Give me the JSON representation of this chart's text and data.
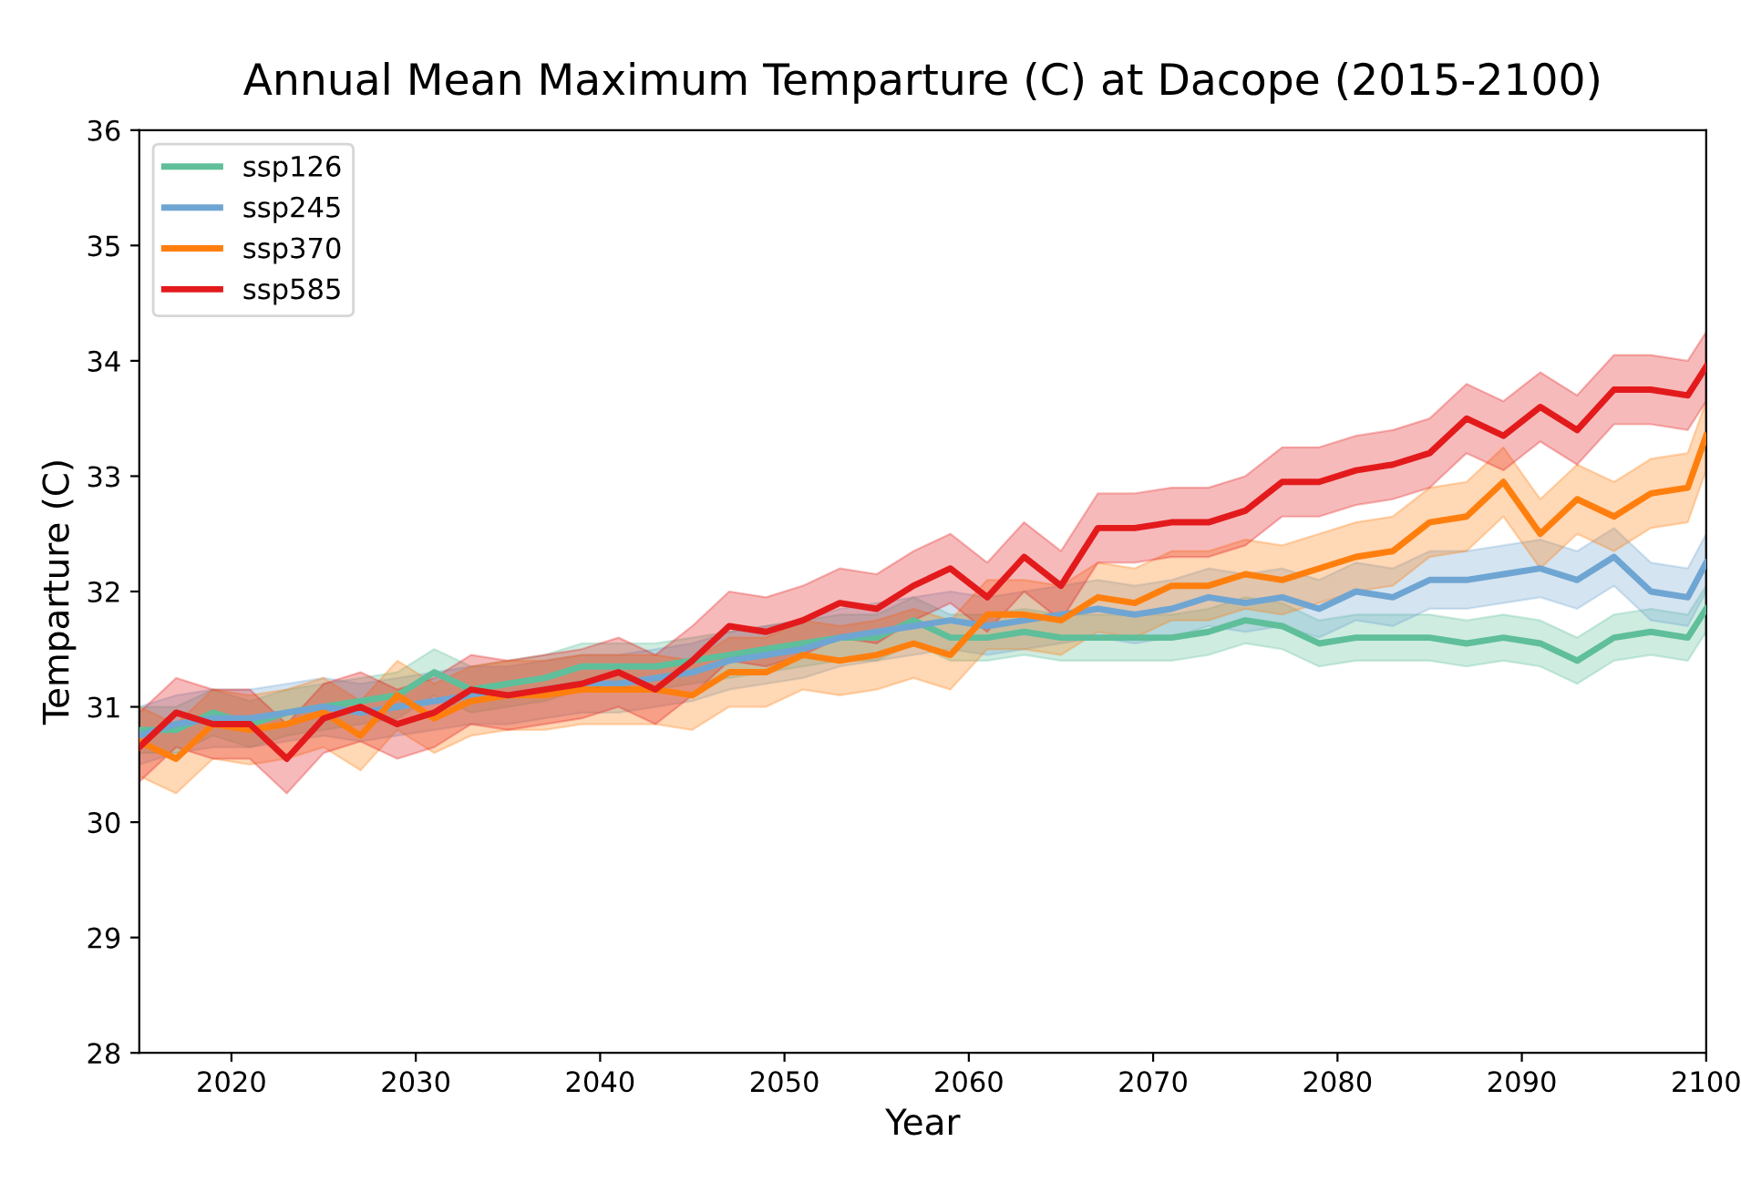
{
  "chart_data": {
    "type": "line",
    "title": "Annual Mean Maximum Temparture (C) at Dacope (2015-2100)",
    "xlabel": "Year",
    "ylabel": "Temparture (C)",
    "x": [
      2015,
      2017,
      2019,
      2021,
      2023,
      2025,
      2027,
      2029,
      2031,
      2033,
      2035,
      2037,
      2039,
      2041,
      2043,
      2045,
      2047,
      2049,
      2051,
      2053,
      2055,
      2057,
      2059,
      2061,
      2063,
      2065,
      2067,
      2069,
      2071,
      2073,
      2075,
      2077,
      2079,
      2081,
      2083,
      2085,
      2087,
      2089,
      2091,
      2093,
      2095,
      2097,
      2099,
      2100
    ],
    "xlim": [
      2015,
      2100
    ],
    "xticks": [
      2020,
      2030,
      2040,
      2050,
      2060,
      2070,
      2080,
      2090,
      2100
    ],
    "ylim": [
      28,
      36
    ],
    "yticks": [
      28,
      29,
      30,
      31,
      32,
      33,
      34,
      35,
      36
    ],
    "grid": false,
    "legend": "top left",
    "line_style": "solid",
    "marker": "none",
    "series": [
      {
        "name": "ssp126",
        "color": "#5fbf9a",
        "values": [
          30.8,
          30.8,
          30.95,
          30.85,
          30.95,
          31.0,
          31.05,
          31.1,
          31.3,
          31.15,
          31.2,
          31.25,
          31.35,
          31.35,
          31.35,
          31.4,
          31.45,
          31.5,
          31.55,
          31.6,
          31.6,
          31.75,
          31.6,
          31.6,
          31.65,
          31.6,
          31.6,
          31.6,
          31.6,
          31.65,
          31.75,
          31.7,
          31.55,
          31.6,
          31.6,
          31.6,
          31.55,
          31.6,
          31.55,
          31.4,
          31.6,
          31.65,
          31.6,
          31.85
        ],
        "lower": [
          30.6,
          30.6,
          30.75,
          30.65,
          30.75,
          30.8,
          30.85,
          30.9,
          31.1,
          30.95,
          31.0,
          31.05,
          31.15,
          31.15,
          31.15,
          31.2,
          31.25,
          31.3,
          31.35,
          31.4,
          31.4,
          31.55,
          31.4,
          31.4,
          31.45,
          31.4,
          31.4,
          31.4,
          31.4,
          31.45,
          31.55,
          31.5,
          31.35,
          31.4,
          31.4,
          31.4,
          31.35,
          31.4,
          31.35,
          31.2,
          31.4,
          31.45,
          31.4,
          31.65
        ],
        "upper": [
          31.0,
          31.0,
          31.15,
          31.05,
          31.15,
          31.2,
          31.25,
          31.3,
          31.5,
          31.35,
          31.4,
          31.45,
          31.55,
          31.55,
          31.55,
          31.6,
          31.65,
          31.7,
          31.75,
          31.8,
          31.8,
          31.95,
          31.8,
          31.8,
          31.85,
          31.8,
          31.8,
          31.8,
          31.8,
          31.85,
          31.95,
          31.9,
          31.75,
          31.8,
          31.8,
          31.8,
          31.75,
          31.8,
          31.75,
          31.6,
          31.8,
          31.85,
          31.8,
          32.05
        ]
      },
      {
        "name": "ssp245",
        "color": "#6fa5d2",
        "values": [
          30.75,
          30.85,
          30.9,
          30.9,
          30.95,
          31.0,
          30.95,
          31.0,
          31.05,
          31.1,
          31.1,
          31.15,
          31.2,
          31.2,
          31.25,
          31.3,
          31.4,
          31.45,
          31.5,
          31.6,
          31.65,
          31.7,
          31.75,
          31.7,
          31.75,
          31.8,
          31.85,
          31.8,
          31.85,
          31.95,
          31.9,
          31.95,
          31.85,
          32.0,
          31.95,
          32.1,
          32.1,
          32.15,
          32.2,
          32.1,
          32.3,
          32.0,
          31.95,
          32.25
        ],
        "lower": [
          30.5,
          30.6,
          30.65,
          30.65,
          30.7,
          30.75,
          30.7,
          30.75,
          30.8,
          30.85,
          30.85,
          30.9,
          30.95,
          30.95,
          31.0,
          31.05,
          31.15,
          31.2,
          31.25,
          31.35,
          31.4,
          31.45,
          31.5,
          31.45,
          31.5,
          31.55,
          31.6,
          31.55,
          31.6,
          31.7,
          31.65,
          31.7,
          31.6,
          31.75,
          31.7,
          31.85,
          31.85,
          31.9,
          31.95,
          31.85,
          32.05,
          31.75,
          31.7,
          32.0
        ],
        "upper": [
          31.0,
          31.1,
          31.15,
          31.15,
          31.2,
          31.25,
          31.2,
          31.25,
          31.3,
          31.35,
          31.35,
          31.4,
          31.45,
          31.45,
          31.5,
          31.55,
          31.65,
          31.7,
          31.75,
          31.85,
          31.9,
          31.95,
          32.0,
          31.95,
          32.0,
          32.05,
          32.1,
          32.05,
          32.1,
          32.2,
          32.15,
          32.2,
          32.1,
          32.25,
          32.2,
          32.35,
          32.35,
          32.4,
          32.45,
          32.35,
          32.55,
          32.25,
          32.2,
          32.5
        ]
      },
      {
        "name": "ssp370",
        "color": "#ff7f0e",
        "values": [
          30.7,
          30.55,
          30.85,
          30.8,
          30.85,
          30.95,
          30.75,
          31.1,
          30.9,
          31.05,
          31.1,
          31.1,
          31.15,
          31.15,
          31.15,
          31.1,
          31.3,
          31.3,
          31.45,
          31.4,
          31.45,
          31.55,
          31.45,
          31.8,
          31.8,
          31.75,
          31.95,
          31.9,
          32.05,
          32.05,
          32.15,
          32.1,
          32.2,
          32.3,
          32.35,
          32.6,
          32.65,
          32.95,
          32.5,
          32.8,
          32.65,
          32.85,
          32.9,
          33.35
        ],
        "lower": [
          30.4,
          30.25,
          30.55,
          30.5,
          30.55,
          30.65,
          30.45,
          30.8,
          30.6,
          30.75,
          30.8,
          30.8,
          30.85,
          30.85,
          30.85,
          30.8,
          31.0,
          31.0,
          31.15,
          31.1,
          31.15,
          31.25,
          31.15,
          31.5,
          31.5,
          31.45,
          31.65,
          31.6,
          31.75,
          31.75,
          31.85,
          31.8,
          31.9,
          32.0,
          32.05,
          32.3,
          32.35,
          32.65,
          32.2,
          32.5,
          32.35,
          32.55,
          32.6,
          33.05
        ],
        "upper": [
          31.0,
          30.85,
          31.15,
          31.1,
          31.15,
          31.25,
          31.05,
          31.4,
          31.2,
          31.35,
          31.4,
          31.4,
          31.45,
          31.45,
          31.45,
          31.4,
          31.6,
          31.6,
          31.75,
          31.7,
          31.75,
          31.85,
          31.75,
          32.1,
          32.1,
          32.05,
          32.25,
          32.2,
          32.35,
          32.35,
          32.45,
          32.4,
          32.5,
          32.6,
          32.65,
          32.9,
          32.95,
          33.25,
          32.8,
          33.1,
          32.95,
          33.15,
          33.2,
          33.65
        ]
      },
      {
        "name": "ssp585",
        "color": "#e31a1c",
        "values": [
          30.65,
          30.95,
          30.85,
          30.85,
          30.55,
          30.9,
          31.0,
          30.85,
          30.95,
          31.15,
          31.1,
          31.15,
          31.2,
          31.3,
          31.15,
          31.4,
          31.7,
          31.65,
          31.75,
          31.9,
          31.85,
          32.05,
          32.2,
          31.95,
          32.3,
          32.05,
          32.55,
          32.55,
          32.6,
          32.6,
          32.7,
          32.95,
          32.95,
          33.05,
          33.1,
          33.2,
          33.5,
          33.35,
          33.6,
          33.4,
          33.75,
          33.75,
          33.7,
          33.95
        ],
        "lower": [
          30.35,
          30.65,
          30.55,
          30.55,
          30.25,
          30.6,
          30.7,
          30.55,
          30.65,
          30.85,
          30.8,
          30.85,
          30.9,
          31.0,
          30.85,
          31.1,
          31.4,
          31.35,
          31.45,
          31.6,
          31.55,
          31.75,
          31.9,
          31.65,
          32.0,
          31.75,
          32.25,
          32.25,
          32.3,
          32.3,
          32.4,
          32.65,
          32.65,
          32.75,
          32.8,
          32.9,
          33.2,
          33.05,
          33.3,
          33.1,
          33.45,
          33.45,
          33.4,
          33.65
        ],
        "upper": [
          30.95,
          31.25,
          31.15,
          31.15,
          30.85,
          31.2,
          31.3,
          31.15,
          31.25,
          31.45,
          31.4,
          31.45,
          31.5,
          31.6,
          31.45,
          31.7,
          32.0,
          31.95,
          32.05,
          32.2,
          32.15,
          32.35,
          32.5,
          32.25,
          32.6,
          32.35,
          32.85,
          32.85,
          32.9,
          32.9,
          33.0,
          33.25,
          33.25,
          33.35,
          33.4,
          33.5,
          33.8,
          33.65,
          33.9,
          33.7,
          34.05,
          34.05,
          34.0,
          34.25
        ]
      }
    ]
  }
}
